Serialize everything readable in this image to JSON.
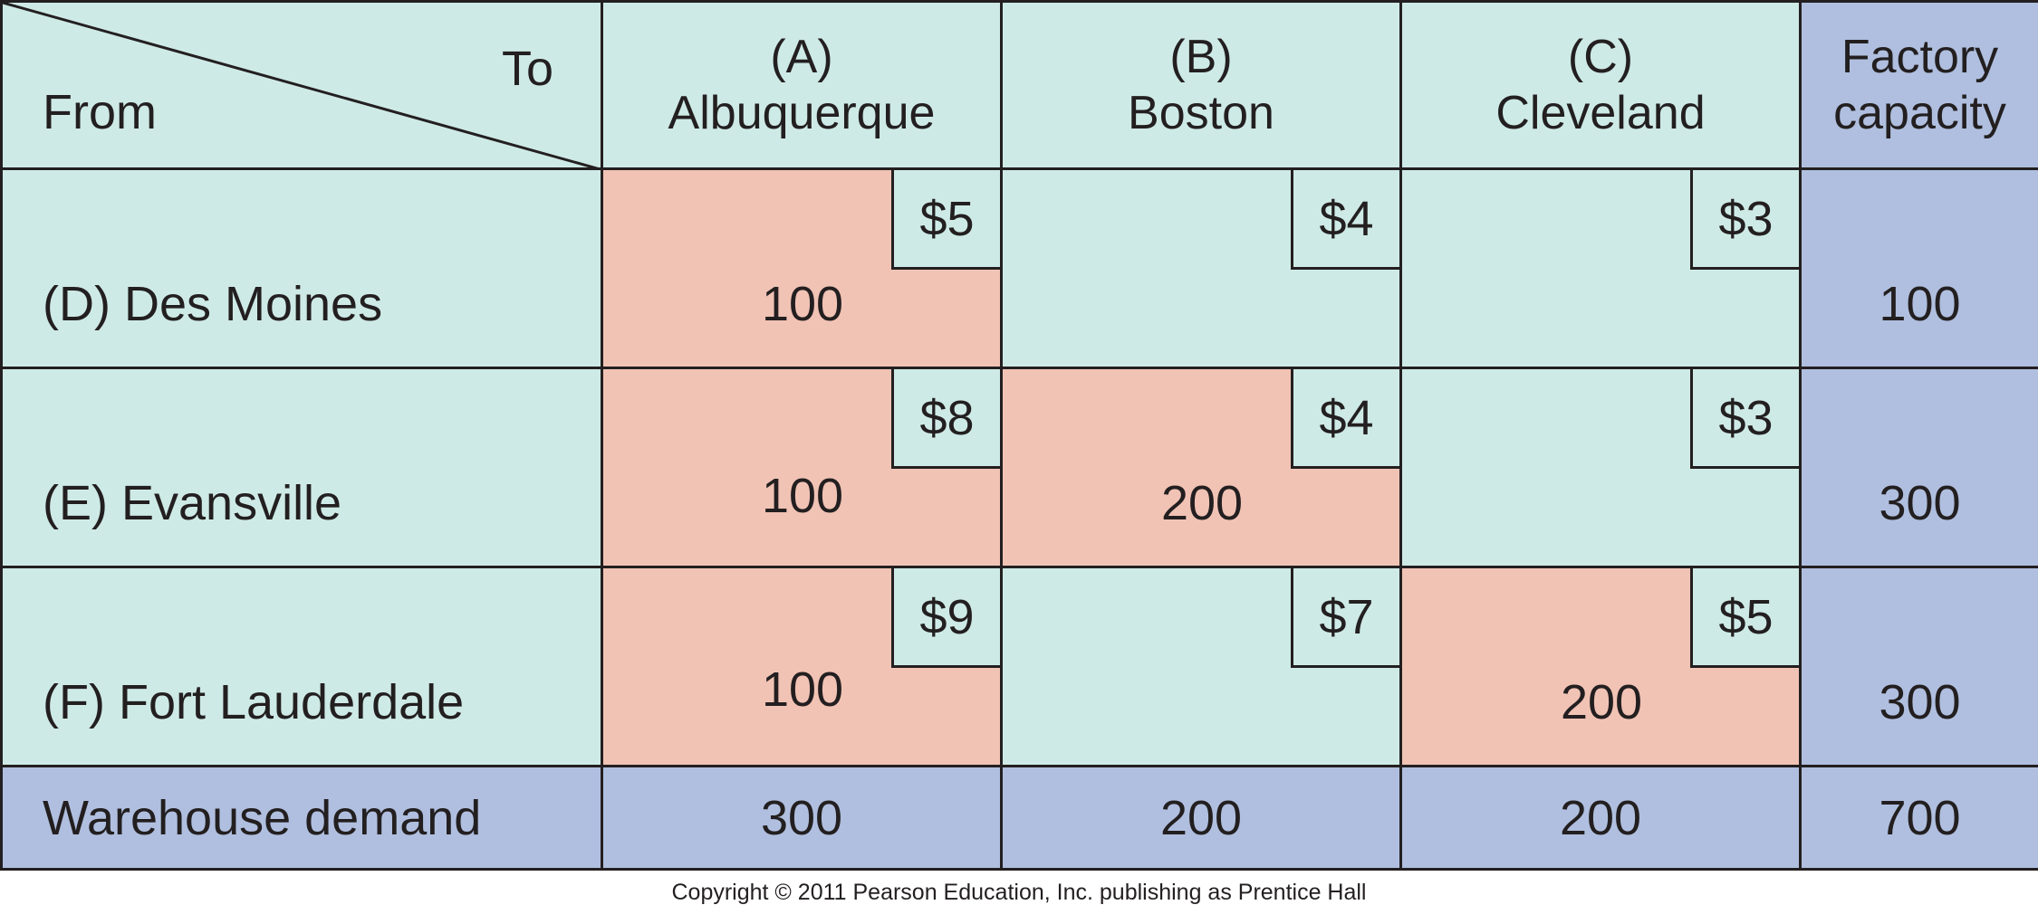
{
  "header": {
    "corner_to": "To",
    "corner_from": "From",
    "columns": [
      {
        "code": "(A)",
        "name": "Albuquerque"
      },
      {
        "code": "(B)",
        "name": "Boston"
      },
      {
        "code": "(C)",
        "name": "Cleveland"
      }
    ],
    "capacity_line1": "Factory",
    "capacity_line2": "capacity"
  },
  "rows": [
    {
      "label": "(D) Des Moines",
      "costs": [
        "$5",
        "$4",
        "$3"
      ],
      "quantities": [
        "100",
        "",
        ""
      ],
      "capacity": "100"
    },
    {
      "label": "(E) Evansville",
      "costs": [
        "$8",
        "$4",
        "$3"
      ],
      "quantities": [
        "100",
        "200",
        ""
      ],
      "capacity": "300"
    },
    {
      "label": "(F) Fort Lauderdale",
      "costs": [
        "$9",
        "$7",
        "$5"
      ],
      "quantities": [
        "100",
        "",
        "200"
      ],
      "capacity": "300"
    }
  ],
  "demand": {
    "label": "Warehouse demand",
    "values": [
      "300",
      "200",
      "200"
    ],
    "total": "700"
  },
  "colors": {
    "cell": "#ceeae6",
    "allocated": "#f1c3b5",
    "totals": "#b0bfdf",
    "border": "#231f20"
  },
  "footer": {
    "copyright": "Copyright © 2011 Pearson Education, Inc. publishing as Prentice Hall"
  }
}
